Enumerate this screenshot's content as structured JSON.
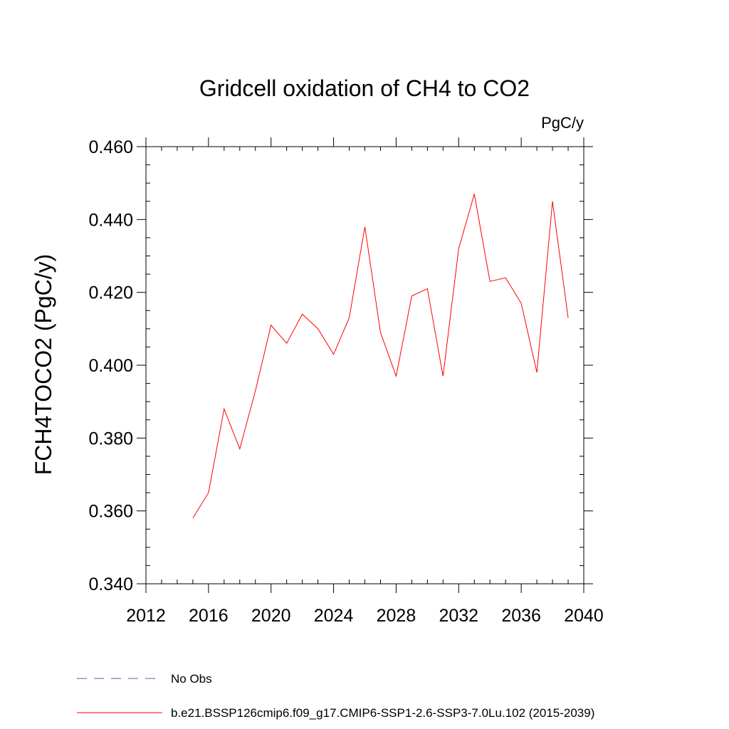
{
  "chart_data": {
    "type": "line",
    "title": "Gridcell oxidation of CH4 to CO2",
    "units": "PgC/y",
    "xlabel": "",
    "ylabel": "FCH4TOCO2  (PgC/y)",
    "xlim": [
      2012,
      2040
    ],
    "ylim": [
      0.34,
      0.46
    ],
    "x_ticks": [
      2012,
      2016,
      2020,
      2024,
      2028,
      2032,
      2036,
      2040
    ],
    "x_tick_labels": [
      "2012",
      "2016",
      "2020",
      "2024",
      "2028",
      "2032",
      "2036",
      "2040"
    ],
    "y_ticks": [
      0.34,
      0.36,
      0.38,
      0.4,
      0.42,
      0.44,
      0.46
    ],
    "y_tick_labels": [
      "0.340",
      "0.360",
      "0.380",
      "0.400",
      "0.420",
      "0.440",
      "0.460"
    ],
    "grid": false,
    "legend_position": "bottom",
    "series": [
      {
        "name": "b.e21.BSSP126cmip6.f09_g17.CMIP6-SSP1-2.6-SSP3-7.0Lu.102 (2015-2039)",
        "color": "#ff0000",
        "style": "solid",
        "x": [
          2015,
          2016,
          2017,
          2018,
          2019,
          2020,
          2021,
          2022,
          2023,
          2024,
          2025,
          2026,
          2027,
          2028,
          2029,
          2030,
          2031,
          2032,
          2033,
          2034,
          2035,
          2036,
          2037,
          2038,
          2039
        ],
        "values": [
          0.358,
          0.365,
          0.388,
          0.377,
          0.393,
          0.411,
          0.406,
          0.414,
          0.41,
          0.403,
          0.413,
          0.438,
          0.409,
          0.397,
          0.419,
          0.421,
          0.397,
          0.432,
          0.447,
          0.423,
          0.424,
          0.417,
          0.398,
          0.445,
          0.413
        ]
      }
    ],
    "legend": [
      {
        "label": "No Obs",
        "color": "#6655aa",
        "style": "dashed"
      },
      {
        "label": "b.e21.BSSP126cmip6.f09_g17.CMIP6-SSP1-2.6-SSP3-7.0Lu.102 (2015-2039)",
        "color": "#ff0000",
        "style": "solid"
      }
    ]
  }
}
